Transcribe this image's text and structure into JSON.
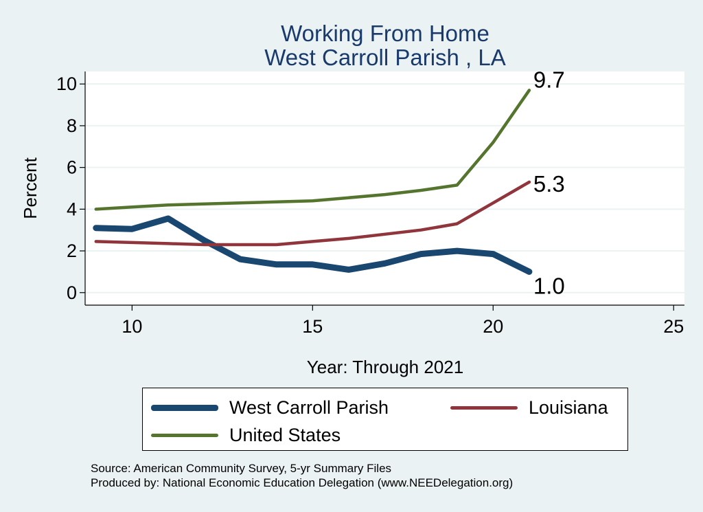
{
  "chart_data": {
    "type": "line",
    "title": [
      "Working From Home",
      "West Carroll Parish , LA"
    ],
    "xlabel": "Year: Through 2021",
    "ylabel": "Percent",
    "xlim": [
      8.7,
      25.3
    ],
    "ylim": [
      -0.6,
      10.6
    ],
    "x_ticks": [
      10,
      15,
      20,
      25
    ],
    "y_ticks": [
      0,
      2,
      4,
      6,
      8,
      10
    ],
    "x": [
      9,
      10,
      11,
      12,
      13,
      14,
      15,
      16,
      17,
      18,
      19,
      20,
      21
    ],
    "series": [
      {
        "name": "West Carroll Parish",
        "color": "#1a476f",
        "values": [
          3.1,
          3.05,
          3.55,
          2.5,
          1.6,
          1.35,
          1.35,
          1.1,
          1.4,
          1.85,
          2.0,
          1.85,
          1.0
        ],
        "end_label": "1.0"
      },
      {
        "name": "Louisiana",
        "color": "#90353b",
        "values": [
          2.45,
          2.4,
          2.35,
          2.3,
          2.3,
          2.3,
          2.45,
          2.6,
          2.8,
          3.0,
          3.3,
          4.3,
          5.3
        ],
        "end_label": "5.3"
      },
      {
        "name": "United States",
        "color": "#55752f",
        "values": [
          4.0,
          4.1,
          4.2,
          4.25,
          4.3,
          4.35,
          4.4,
          4.55,
          4.7,
          4.9,
          5.15,
          7.2,
          9.7
        ],
        "end_label": "9.7"
      }
    ]
  },
  "legend": {
    "items": [
      "West Carroll Parish",
      "Louisiana",
      "United States"
    ]
  },
  "footer": {
    "source": "Source: American Community Survey, 5-yr Summary Files",
    "produced_by": "Produced by: National Economic Education Delegation (www.NEEDelegation.org)"
  }
}
